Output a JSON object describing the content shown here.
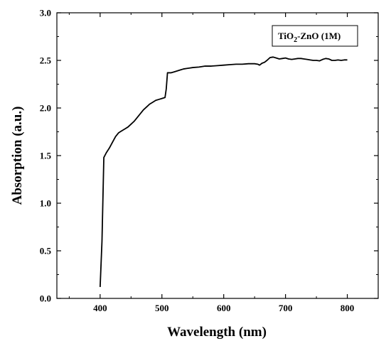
{
  "chart_data": {
    "type": "line",
    "title": "",
    "xlabel": "Wavelength (nm)",
    "ylabel": "Absorption (a.u.)",
    "xlim": [
      330,
      850
    ],
    "ylim": [
      0,
      3.0
    ],
    "xticks": [
      400,
      500,
      600,
      700,
      800
    ],
    "yticks": [
      0.0,
      0.5,
      1.0,
      1.5,
      2.0,
      2.5,
      3.0
    ],
    "xtick_labels": [
      "400",
      "500",
      "600",
      "700",
      "800"
    ],
    "ytick_labels": [
      "0.0",
      "0.5",
      "1.0",
      "1.5",
      "2.0",
      "2.5",
      "3.0"
    ],
    "grid": false,
    "legend_position": "top-right",
    "series": [
      {
        "name_main": "TiO",
        "name_sub": "2",
        "name_rest": "-ZnO (1M)",
        "color": "#000000",
        "x": [
          400,
          403,
          406,
          410,
          415,
          420,
          425,
          430,
          435,
          440,
          445,
          450,
          455,
          460,
          465,
          470,
          475,
          480,
          485,
          490,
          495,
          500,
          505,
          507,
          509,
          512,
          515,
          520,
          525,
          530,
          535,
          540,
          545,
          550,
          560,
          570,
          575,
          580,
          590,
          600,
          610,
          620,
          630,
          640,
          650,
          655,
          658,
          662,
          666,
          670,
          675,
          680,
          685,
          690,
          695,
          700,
          705,
          710,
          715,
          720,
          725,
          730,
          735,
          740,
          745,
          750,
          755,
          760,
          765,
          770,
          775,
          780,
          785,
          790,
          795,
          800
        ],
        "y": [
          0.12,
          0.6,
          1.48,
          1.53,
          1.58,
          1.64,
          1.7,
          1.74,
          1.76,
          1.78,
          1.8,
          1.83,
          1.86,
          1.9,
          1.94,
          1.98,
          2.01,
          2.04,
          2.06,
          2.08,
          2.09,
          2.1,
          2.11,
          2.2,
          2.37,
          2.37,
          2.37,
          2.38,
          2.39,
          2.4,
          2.41,
          2.415,
          2.42,
          2.425,
          2.43,
          2.44,
          2.44,
          2.44,
          2.445,
          2.45,
          2.455,
          2.46,
          2.46,
          2.465,
          2.465,
          2.46,
          2.45,
          2.47,
          2.48,
          2.5,
          2.53,
          2.535,
          2.525,
          2.515,
          2.52,
          2.525,
          2.515,
          2.51,
          2.515,
          2.52,
          2.52,
          2.515,
          2.51,
          2.505,
          2.5,
          2.5,
          2.495,
          2.51,
          2.52,
          2.515,
          2.5,
          2.5,
          2.505,
          2.5,
          2.505,
          2.505
        ]
      }
    ]
  }
}
